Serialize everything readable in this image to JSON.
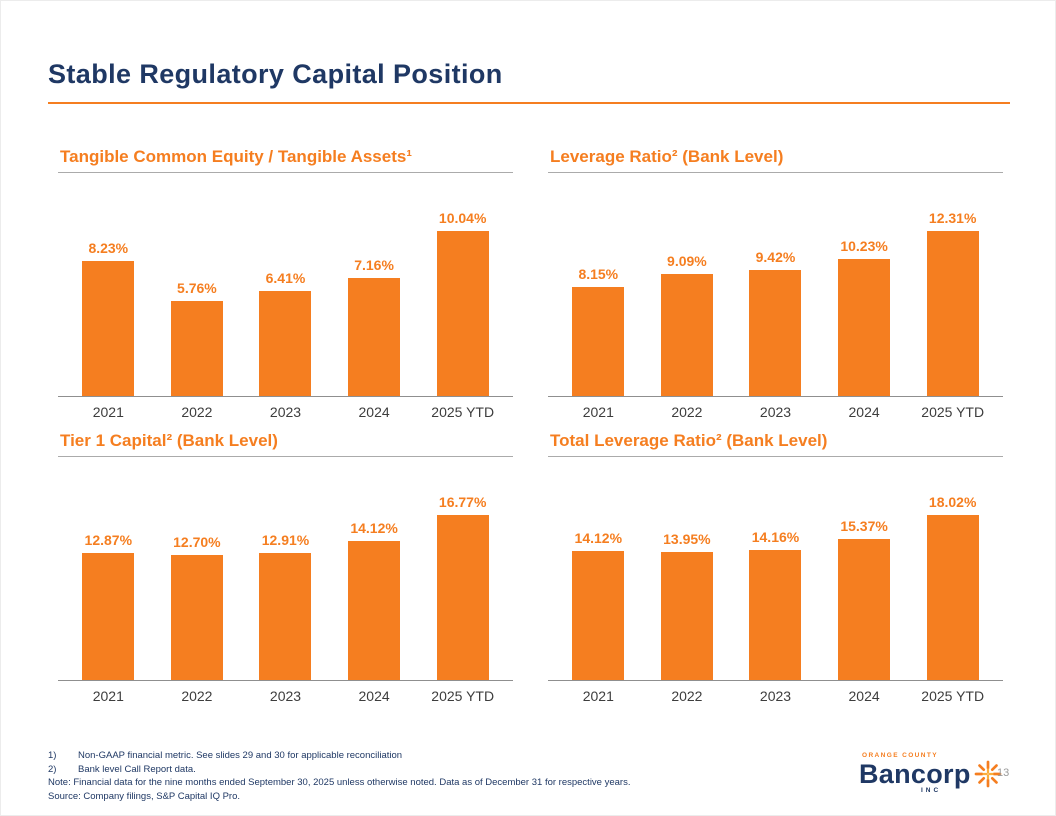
{
  "slide": {
    "title": "Stable Regulatory Capital Position",
    "page_number": "13"
  },
  "chart_data": [
    {
      "type": "bar",
      "title": "Tangible Common Equity / Tangible Assets¹",
      "categories": [
        "2021",
        "2022",
        "2023",
        "2024",
        "2025 YTD"
      ],
      "values": [
        8.23,
        5.76,
        6.41,
        7.16,
        10.04
      ],
      "labels": [
        "8.23%",
        "5.76%",
        "6.41%",
        "7.16%",
        "10.04%"
      ],
      "ylim": [
        0,
        10.04
      ],
      "bar_color": "#F57E20",
      "legend": "none",
      "grid": false
    },
    {
      "type": "bar",
      "title": "Leverage Ratio² (Bank Level)",
      "categories": [
        "2021",
        "2022",
        "2023",
        "2024",
        "2025 YTD"
      ],
      "values": [
        8.15,
        9.09,
        9.42,
        10.23,
        12.31
      ],
      "labels": [
        "8.15%",
        "9.09%",
        "9.42%",
        "10.23%",
        "12.31%"
      ],
      "ylim": [
        0,
        12.31
      ],
      "bar_color": "#F57E20",
      "legend": "none",
      "grid": false
    },
    {
      "type": "bar",
      "title": "Tier 1 Capital² (Bank Level)",
      "categories": [
        "2021",
        "2022",
        "2023",
        "2024",
        "2025 YTD"
      ],
      "values": [
        12.87,
        12.7,
        12.91,
        14.12,
        16.77
      ],
      "labels": [
        "12.87%",
        "12.70%",
        "12.91%",
        "14.12%",
        "16.77%"
      ],
      "ylim": [
        0,
        16.77
      ],
      "bar_color": "#F57E20",
      "legend": "none",
      "grid": false
    },
    {
      "type": "bar",
      "title": "Total Leverage Ratio² (Bank Level)",
      "categories": [
        "2021",
        "2022",
        "2023",
        "2024",
        "2025 YTD"
      ],
      "values": [
        14.12,
        13.95,
        14.16,
        15.37,
        18.02
      ],
      "labels": [
        "14.12%",
        "13.95%",
        "14.16%",
        "15.37%",
        "18.02%"
      ],
      "ylim": [
        0,
        18.02
      ],
      "bar_color": "#F57E20",
      "legend": "none",
      "grid": false
    }
  ],
  "footnotes": {
    "numbered": [
      {
        "num": "1)",
        "text": "Non-GAAP financial metric. See slides 29 and 30 for applicable reconciliation"
      },
      {
        "num": "2)",
        "text": "Bank level Call Report data."
      }
    ],
    "note": "Note: Financial data for the nine months ended September 30, 2025 unless otherwise noted. Data as of December 31 for respective years.",
    "source": "Source: Company filings, S&P Capital IQ Pro."
  },
  "logo": {
    "top_text": "ORANGE COUNTY",
    "name": "Bancorp",
    "suffix": "INC",
    "icon": "sunburst-icon"
  },
  "colors": {
    "orange": "#F57E20",
    "navy": "#1F3864",
    "axis_gray": "#8f8f8f",
    "year_text": "#3d3d3d",
    "page_number_gray": "#9a9a9a"
  }
}
